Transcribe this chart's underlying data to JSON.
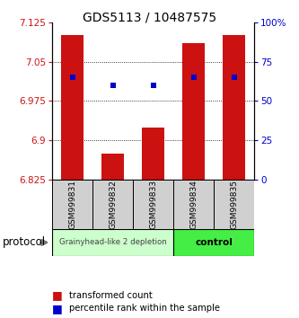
{
  "title": "GDS5113 / 10487575",
  "samples": [
    "GSM999831",
    "GSM999832",
    "GSM999833",
    "GSM999834",
    "GSM999835"
  ],
  "bar_values": [
    7.1,
    6.875,
    6.925,
    7.085,
    7.1
  ],
  "percentile_values": [
    65,
    60,
    60,
    65,
    65
  ],
  "ymin": 6.825,
  "ymax": 7.125,
  "yticks_left": [
    6.825,
    6.9,
    6.975,
    7.05,
    7.125
  ],
  "yticks_right": [
    0,
    25,
    50,
    75,
    100
  ],
  "bar_color": "#cc1111",
  "dot_color": "#0000cc",
  "group1_label": "Grainyhead-like 2 depletion",
  "group2_label": "control",
  "group1_color": "#ccffcc",
  "group2_color": "#44ee44",
  "group1_samples": [
    0,
    1,
    2
  ],
  "group2_samples": [
    3,
    4
  ],
  "legend_bar_label": "transformed count",
  "legend_dot_label": "percentile rank within the sample",
  "protocol_label": "protocol"
}
